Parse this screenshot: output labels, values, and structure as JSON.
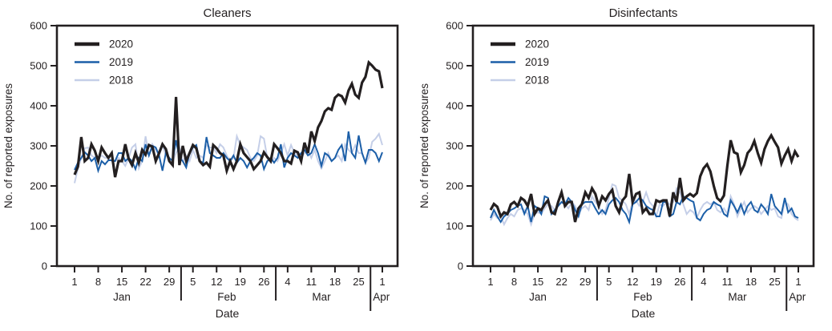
{
  "ink_color": "#231f20",
  "chart_data": [
    {
      "type": "line",
      "title": "Cleaners",
      "xlabel": "Date",
      "ylabel": "No. of reported exposures",
      "ylim": [
        0,
        600
      ],
      "yticks": [
        0,
        100,
        200,
        300,
        400,
        500,
        600
      ],
      "grid": false,
      "legend_position": "top-left",
      "legend": [
        "2020",
        "2019",
        "2018"
      ],
      "x_unit": "day index from Jan 1 (0 = Jan 1, 91 = Apr 1)",
      "x_ticks": [
        {
          "day": 0,
          "label": "1"
        },
        {
          "day": 7,
          "label": "8"
        },
        {
          "day": 14,
          "label": "15"
        },
        {
          "day": 21,
          "label": "22"
        },
        {
          "day": 28,
          "label": "29"
        },
        {
          "day": 35,
          "label": "5"
        },
        {
          "day": 42,
          "label": "12"
        },
        {
          "day": 49,
          "label": "19"
        },
        {
          "day": 56,
          "label": "26"
        },
        {
          "day": 63,
          "label": "4"
        },
        {
          "day": 70,
          "label": "11"
        },
        {
          "day": 77,
          "label": "18"
        },
        {
          "day": 84,
          "label": "25"
        },
        {
          "day": 91,
          "label": "1"
        }
      ],
      "month_labels": [
        {
          "label": "Jan",
          "day": 14
        },
        {
          "label": "Feb",
          "day": 45
        },
        {
          "label": "Mar",
          "day": 73
        },
        {
          "label": "Apr",
          "day": 90.7
        }
      ],
      "month_dividers_day": [
        31.5,
        59.5,
        87.5
      ],
      "series": [
        {
          "name": "2020",
          "color": "#231f20",
          "width": 3.2,
          "values": [
            228,
            248,
            322,
            262,
            270,
            304,
            288,
            262,
            296,
            282,
            270,
            282,
            222,
            262,
            262,
            304,
            268,
            252,
            282,
            258,
            290,
            278,
            302,
            298,
            262,
            282,
            304,
            292,
            262,
            252,
            422,
            252,
            300,
            262,
            282,
            302,
            294,
            262,
            252,
            258,
            248,
            302,
            294,
            282,
            276,
            238,
            262,
            242,
            262,
            304,
            282,
            272,
            262,
            242,
            252,
            262,
            284,
            272,
            262,
            304,
            294,
            282,
            262,
            262,
            256,
            288,
            284,
            262,
            308,
            282,
            336,
            312,
            346,
            362,
            386,
            394,
            390,
            420,
            428,
            424,
            408,
            438,
            455,
            428,
            420,
            458,
            472,
            508,
            500,
            490,
            486,
            444
          ]
        },
        {
          "name": "2019",
          "color": "#1c5fa8",
          "width": 2,
          "values": [
            240,
            258,
            270,
            284,
            276,
            262,
            270,
            238,
            262,
            254,
            264,
            264,
            262,
            282,
            282,
            262,
            270,
            262,
            242,
            270,
            262,
            304,
            276,
            300,
            296,
            276,
            238,
            282,
            270,
            262,
            314,
            270,
            262,
            246,
            282,
            296,
            302,
            262,
            258,
            322,
            282,
            276,
            270,
            270,
            282,
            270,
            262,
            276,
            258,
            270,
            262,
            246,
            262,
            270,
            282,
            276,
            242,
            262,
            270,
            258,
            270,
            304,
            246,
            270,
            282,
            276,
            270,
            282,
            290,
            276,
            282,
            304,
            282,
            250,
            282,
            276,
            262,
            270,
            290,
            302,
            262,
            336,
            282,
            270,
            326,
            282,
            258,
            290,
            290,
            282,
            262,
            284
          ]
        },
        {
          "name": "2018",
          "color": "#c5cfe8",
          "width": 2,
          "values": [
            207,
            244,
            270,
            294,
            296,
            276,
            270,
            270,
            276,
            270,
            270,
            262,
            262,
            270,
            262,
            250,
            270,
            296,
            304,
            244,
            262,
            324,
            276,
            304,
            290,
            276,
            302,
            276,
            270,
            262,
            282,
            296,
            262,
            276,
            262,
            290,
            270,
            276,
            270,
            302,
            296,
            296,
            282,
            304,
            296,
            276,
            262,
            270,
            324,
            302,
            296,
            290,
            270,
            262,
            276,
            324,
            318,
            270,
            258,
            270,
            262,
            282,
            304,
            276,
            302,
            282,
            276,
            270,
            282,
            290,
            270,
            290,
            262,
            244,
            262,
            282,
            262,
            270,
            276,
            262,
            304,
            290,
            282,
            302,
            282,
            282,
            258,
            270,
            310,
            318,
            330,
            302
          ]
        }
      ]
    },
    {
      "type": "line",
      "title": "Disinfectants",
      "xlabel": "Date",
      "ylabel": "No. of reported exposures",
      "ylim": [
        0,
        600
      ],
      "yticks": [
        0,
        100,
        200,
        300,
        400,
        500,
        600
      ],
      "grid": false,
      "legend_position": "top-left",
      "legend": [
        "2020",
        "2019",
        "2018"
      ],
      "x_unit": "day index from Jan 1 (0 = Jan 1, 91 = Apr 1)",
      "x_ticks": [
        {
          "day": 0,
          "label": "1"
        },
        {
          "day": 7,
          "label": "8"
        },
        {
          "day": 14,
          "label": "15"
        },
        {
          "day": 21,
          "label": "22"
        },
        {
          "day": 28,
          "label": "29"
        },
        {
          "day": 35,
          "label": "5"
        },
        {
          "day": 42,
          "label": "12"
        },
        {
          "day": 49,
          "label": "19"
        },
        {
          "day": 56,
          "label": "26"
        },
        {
          "day": 63,
          "label": "4"
        },
        {
          "day": 70,
          "label": "11"
        },
        {
          "day": 77,
          "label": "18"
        },
        {
          "day": 84,
          "label": "25"
        },
        {
          "day": 91,
          "label": "1"
        }
      ],
      "month_labels": [
        {
          "label": "Jan",
          "day": 14
        },
        {
          "label": "Feb",
          "day": 45
        },
        {
          "label": "Mar",
          "day": 73
        },
        {
          "label": "Apr",
          "day": 90.7
        }
      ],
      "month_dividers_day": [
        31.5,
        59.5,
        87.5
      ],
      "series": [
        {
          "name": "2020",
          "color": "#231f20",
          "width": 3.2,
          "values": [
            140,
            155,
            148,
            124,
            134,
            130,
            154,
            160,
            150,
            170,
            164,
            150,
            180,
            130,
            144,
            140,
            154,
            164,
            134,
            130,
            160,
            184,
            150,
            160,
            160,
            110,
            144,
            154,
            184,
            170,
            194,
            180,
            150,
            174,
            164,
            180,
            190,
            150,
            134,
            164,
            174,
            230,
            160,
            180,
            184,
            134,
            144,
            130,
            130,
            164,
            160,
            164,
            164,
            124,
            184,
            160,
            220,
            164,
            174,
            180,
            174,
            182,
            224,
            244,
            254,
            236,
            200,
            170,
            162,
            176,
            250,
            314,
            284,
            280,
            234,
            252,
            282,
            292,
            312,
            282,
            258,
            292,
            312,
            326,
            310,
            296,
            256,
            276,
            292,
            262,
            286,
            272
          ]
        },
        {
          "name": "2019",
          "color": "#1c5fa8",
          "width": 2,
          "values": [
            120,
            140,
            124,
            110,
            124,
            130,
            140,
            144,
            150,
            154,
            130,
            150,
            110,
            150,
            144,
            130,
            174,
            170,
            130,
            140,
            150,
            160,
            154,
            170,
            160,
            140,
            124,
            154,
            160,
            160,
            160,
            144,
            130,
            140,
            130,
            154,
            164,
            170,
            160,
            140,
            130,
            110,
            154,
            160,
            170,
            164,
            150,
            144,
            140,
            124,
            124,
            160,
            160,
            124,
            130,
            160,
            154,
            174,
            170,
            164,
            160,
            120,
            114,
            130,
            140,
            144,
            160,
            154,
            150,
            130,
            124,
            164,
            150,
            134,
            154,
            130,
            150,
            160,
            140,
            134,
            154,
            144,
            130,
            180,
            150,
            140,
            130,
            170,
            134,
            144,
            124,
            120
          ]
        },
        {
          "name": "2018",
          "color": "#c5cfe8",
          "width": 2,
          "values": [
            114,
            130,
            120,
            124,
            104,
            120,
            130,
            124,
            140,
            144,
            140,
            130,
            104,
            130,
            134,
            130,
            144,
            154,
            150,
            140,
            150,
            160,
            154,
            144,
            160,
            150,
            130,
            144,
            150,
            140,
            174,
            160,
            150,
            130,
            140,
            170,
            204,
            200,
            170,
            164,
            154,
            130,
            160,
            164,
            150,
            160,
            184,
            160,
            150,
            124,
            154,
            150,
            160,
            154,
            160,
            194,
            184,
            154,
            130,
            140,
            134,
            120,
            140,
            154,
            160,
            154,
            160,
            140,
            134,
            144,
            130,
            174,
            154,
            124,
            144,
            160,
            134,
            144,
            150,
            144,
            130,
            140,
            150,
            140,
            144,
            124,
            120,
            160,
            154,
            130,
            120,
            114
          ]
        }
      ]
    }
  ]
}
